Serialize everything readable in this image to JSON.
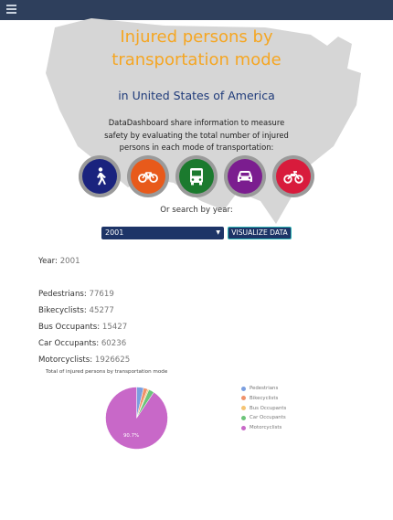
{
  "header": {
    "menu_icon": "hamburger-menu-icon"
  },
  "hero": {
    "title_line1": "Injured persons by",
    "title_line2": "transportation mode",
    "subtitle": "in United States of America",
    "description_line1": "DataDashboard share information to measure",
    "description_line2": "safety by evaluating the total number of injured",
    "description_line3": "persons in each mode of transportation:"
  },
  "modes": [
    {
      "icon": "pedestrian-icon",
      "color": "#1a237e"
    },
    {
      "icon": "bicycle-icon",
      "color": "#e85a1b"
    },
    {
      "icon": "bus-icon",
      "color": "#1b7a2e"
    },
    {
      "icon": "car-icon",
      "color": "#7b1d8f"
    },
    {
      "icon": "motorcycle-icon",
      "color": "#d81b3c"
    }
  ],
  "search": {
    "label": "Or search by year:",
    "selected_year": "2001",
    "button_label": "VISUALIZE DATA"
  },
  "stats": {
    "year_label": "Year:",
    "year_value": "2001",
    "pedestrians_label": "Pedestrians:",
    "pedestrians_value": "77619",
    "bikecyclists_label": "Bikecyclists:",
    "bikecyclists_value": "45277",
    "bus_label": "Bus Occupants:",
    "bus_value": "15427",
    "car_label": "Car Occupants:",
    "car_value": "60236",
    "motorcyclists_label": "Motorcyclists:",
    "motorcyclists_value": "1926625"
  },
  "chart_data": {
    "type": "pie",
    "title": "Total of injured persons by transportation mode",
    "categories": [
      "Pedestrians",
      "Bikecyclists",
      "Bus Occupants",
      "Car Occupants",
      "Motorcyclists"
    ],
    "values": [
      77619,
      45277,
      15427,
      60236,
      1926625
    ],
    "colors": [
      "#7b9fe0",
      "#f0926a",
      "#f5c473",
      "#6cc47a",
      "#c868c8"
    ],
    "slice_label": "90.7%",
    "legend_position": "right"
  }
}
